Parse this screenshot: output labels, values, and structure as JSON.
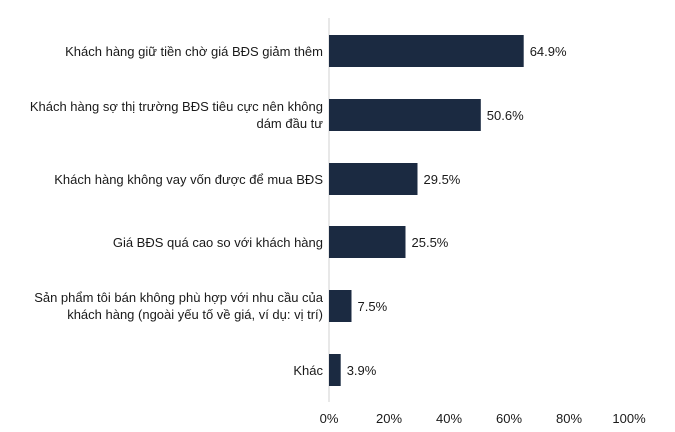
{
  "chart_data": {
    "type": "bar",
    "orientation": "horizontal",
    "categories": [
      [
        "Khách hàng giữ tiền chờ giá BĐS giảm thêm"
      ],
      [
        "Khách hàng sợ thị trường BĐS tiêu cực nên không",
        "dám đầu tư"
      ],
      [
        "Khách hàng không vay vốn được để mua BĐS"
      ],
      [
        "Giá BĐS quá cao so với khách hàng"
      ],
      [
        "Sản phẩm tôi bán không phù hợp với nhu cầu của",
        "khách hàng (ngoài yếu tố về giá, ví dụ: vị trí)"
      ],
      [
        "Khác"
      ]
    ],
    "values": [
      64.9,
      50.6,
      29.5,
      25.5,
      7.5,
      3.9
    ],
    "value_labels": [
      "64.9%",
      "50.6%",
      "29.5%",
      "25.5%",
      "7.5%",
      "3.9%"
    ],
    "xlim": [
      0,
      100
    ],
    "xticks": [
      "0%",
      "20%",
      "40%",
      "60%",
      "80%",
      "100%"
    ],
    "bar_color": "#1b2a41",
    "grid": false,
    "title": "",
    "xlabel": "",
    "ylabel": ""
  }
}
